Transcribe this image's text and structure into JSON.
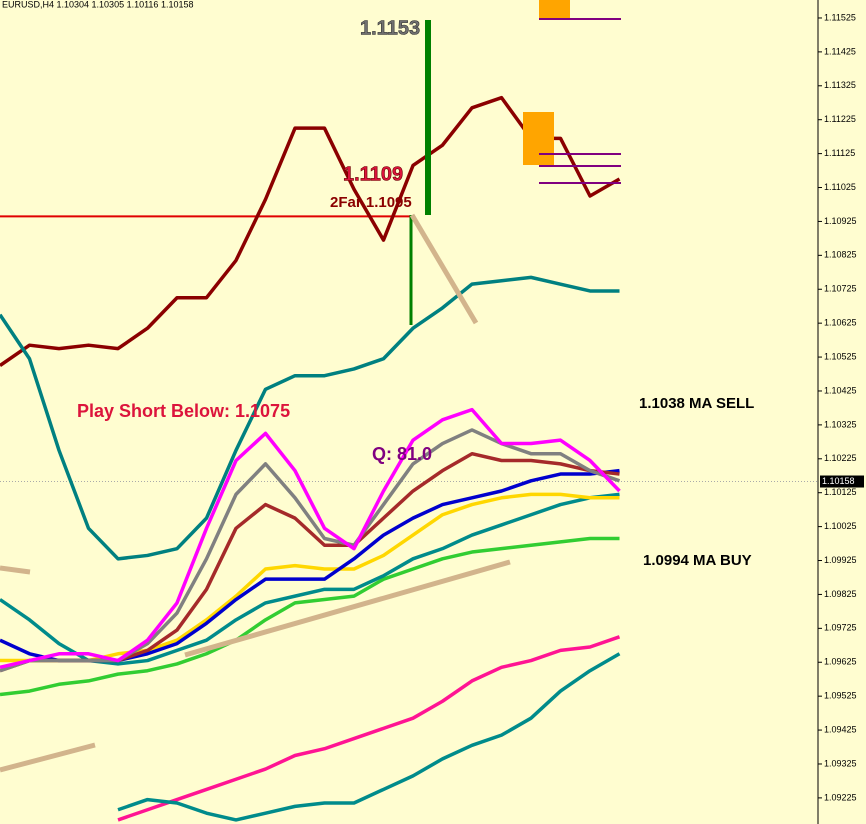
{
  "chart_data": {
    "type": "line",
    "title": "EURUSD,H4  1.10304 1.10305 1.10116 1.10158",
    "annotations": [
      "1.1153",
      "1.1109",
      "2Far 1.1095",
      "Play Short Below: 1.1075",
      "Q: 81.0",
      "1.1038 MA SELL",
      "1.0994 MA BUY"
    ],
    "current_price": 1.10158,
    "hline": {
      "value": 1.1094,
      "color": "#e00000"
    },
    "categories": [
      null,
      null,
      null,
      null,
      null,
      null,
      null,
      null,
      null,
      null,
      null,
      null,
      null,
      null,
      null,
      null,
      null,
      null,
      null,
      null,
      null,
      null
    ],
    "series": [
      {
        "color": "#8b0000",
        "values": [
          1.105,
          1.1056,
          1.1055,
          1.1056,
          1.1055,
          1.1061,
          1.107,
          1.107,
          1.1081,
          1.1099,
          1.112,
          1.112,
          1.1102,
          1.1087,
          1.1109,
          1.1115,
          1.1126,
          1.1129,
          1.1117,
          1.1117,
          1.11,
          1.1105
        ]
      },
      {
        "color": "#008080",
        "values": [
          1.1065,
          1.1052,
          1.1025,
          1.1002,
          1.0993,
          1.0994,
          1.0996,
          1.1005,
          1.1025,
          1.1043,
          1.1047,
          1.1047,
          1.1049,
          1.1052,
          1.1061,
          1.1067,
          1.1074,
          1.1075,
          1.1076,
          1.1074,
          1.1072,
          1.1072
        ]
      },
      {
        "color": "#32cd32",
        "values": [
          1.0953,
          1.0954,
          1.0956,
          1.0957,
          1.0959,
          1.096,
          1.0962,
          1.0965,
          1.0969,
          1.0975,
          1.098,
          1.0981,
          1.0982,
          1.0987,
          1.099,
          1.0993,
          1.0995,
          1.0996,
          1.0997,
          1.0998,
          1.0999,
          1.0999
        ]
      },
      {
        "color": "#008b8b",
        "values": [
          1.0981,
          1.0975,
          1.0968,
          1.0963,
          1.0962,
          1.0963,
          1.0966,
          1.0969,
          1.0975,
          1.098,
          1.0982,
          1.0984,
          1.0984,
          1.0988,
          1.0993,
          1.0996,
          1.1,
          1.1003,
          1.1006,
          1.1009,
          1.1011,
          1.1012
        ]
      },
      {
        "color": "#ffd700",
        "values": [
          1.0963,
          1.0963,
          1.0963,
          1.0963,
          1.0965,
          1.0966,
          1.0969,
          1.0975,
          1.0982,
          1.099,
          1.0991,
          1.099,
          1.099,
          1.0994,
          1.1,
          1.1006,
          1.1009,
          1.1011,
          1.1012,
          1.1012,
          1.1011,
          1.1011
        ]
      },
      {
        "color": "#0000cd",
        "values": [
          1.0969,
          1.0965,
          1.0963,
          1.0963,
          1.0963,
          1.0965,
          1.0968,
          1.0974,
          1.0981,
          1.0987,
          1.0987,
          1.0987,
          1.0993,
          1.1,
          1.1005,
          1.1009,
          1.1011,
          1.1013,
          1.1016,
          1.1018,
          1.1018,
          1.1019
        ]
      },
      {
        "color": "#a52a2a",
        "values": [
          1.096,
          1.0963,
          1.0963,
          1.0963,
          1.0963,
          1.0966,
          1.0972,
          1.0984,
          1.1002,
          1.1009,
          1.1005,
          1.0997,
          1.0997,
          1.1005,
          1.1013,
          1.1019,
          1.1024,
          1.1022,
          1.1022,
          1.1021,
          1.1019,
          1.1018
        ]
      },
      {
        "color": "#808080",
        "values": [
          1.096,
          1.0963,
          1.0963,
          1.0963,
          1.0963,
          1.0968,
          1.0977,
          1.0993,
          1.1012,
          1.1021,
          1.1011,
          1.0999,
          1.0997,
          1.1009,
          1.1021,
          1.1027,
          1.1031,
          1.1027,
          1.1024,
          1.1024,
          1.1019,
          1.1016
        ]
      },
      {
        "color": "#ff00ff",
        "values": [
          1.0961,
          1.0963,
          1.0965,
          1.0965,
          1.0963,
          1.0969,
          1.098,
          1.1002,
          1.1022,
          1.103,
          1.1019,
          1.1002,
          1.0996,
          1.1013,
          1.1028,
          1.1034,
          1.1037,
          1.1027,
          1.1027,
          1.1028,
          1.1022,
          1.1013
        ]
      },
      {
        "color": "#ff1493",
        "values": [
          null,
          null,
          null,
          null,
          1.0916,
          1.0919,
          1.0922,
          1.0925,
          1.0928,
          1.0931,
          1.0935,
          1.0937,
          1.094,
          1.0943,
          1.0946,
          1.0951,
          1.0957,
          1.0961,
          1.0963,
          1.0966,
          1.0967,
          1.097
        ]
      },
      {
        "color": "#008b8b",
        "values": [
          null,
          null,
          null,
          null,
          1.0919,
          1.0922,
          1.0921,
          1.0918,
          1.0916,
          1.0918,
          1.092,
          1.0921,
          1.0921,
          1.0925,
          1.0929,
          1.0934,
          1.0938,
          1.0941,
          1.0946,
          1.0954,
          1.096,
          1.0965
        ]
      }
    ],
    "ylim": [
      1.09148,
      1.11578
    ],
    "yticks": [
      1.09225,
      1.09325,
      1.09425,
      1.09525,
      1.09625,
      1.09725,
      1.09825,
      1.09925,
      1.10025,
      1.10125,
      1.10225,
      1.10325,
      1.10425,
      1.10525,
      1.10625,
      1.10725,
      1.10825,
      1.10925,
      1.11025,
      1.11125,
      1.11225,
      1.11325,
      1.11425,
      1.11525
    ]
  }
}
